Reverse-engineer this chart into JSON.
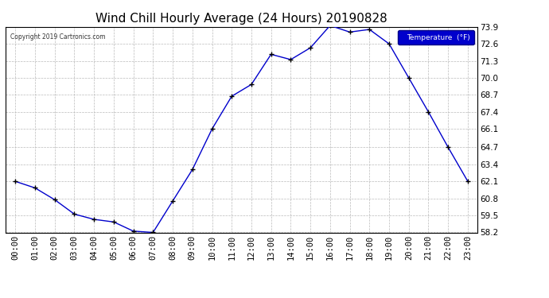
{
  "title": "Wind Chill Hourly Average (24 Hours) 20190828",
  "copyright": "Copyright 2019 Cartronics.com",
  "legend_label": "Temperature  (°F)",
  "hours": [
    "00:00",
    "01:00",
    "02:00",
    "03:00",
    "04:00",
    "05:00",
    "06:00",
    "07:00",
    "08:00",
    "09:00",
    "10:00",
    "11:00",
    "12:00",
    "13:00",
    "14:00",
    "15:00",
    "16:00",
    "17:00",
    "18:00",
    "19:00",
    "20:00",
    "21:00",
    "22:00",
    "23:00"
  ],
  "values": [
    62.1,
    61.6,
    60.7,
    59.6,
    59.2,
    59.0,
    58.3,
    58.2,
    60.6,
    63.0,
    66.1,
    68.6,
    69.5,
    71.8,
    71.4,
    72.3,
    74.0,
    73.5,
    73.7,
    72.6,
    70.0,
    67.4,
    64.7,
    62.1
  ],
  "line_color": "#0000cc",
  "marker_color": "#000000",
  "bg_color": "#ffffff",
  "plot_bg_color": "#ffffff",
  "grid_color": "#bbbbbb",
  "ylim": [
    58.2,
    73.9
  ],
  "yticks": [
    58.2,
    59.5,
    60.8,
    62.1,
    63.4,
    64.7,
    66.1,
    67.4,
    68.7,
    70.0,
    71.3,
    72.6,
    73.9
  ],
  "title_fontsize": 11,
  "axis_fontsize": 7.5,
  "legend_bg": "#0000cc",
  "legend_text_color": "#ffffff",
  "border_color": "#000000"
}
